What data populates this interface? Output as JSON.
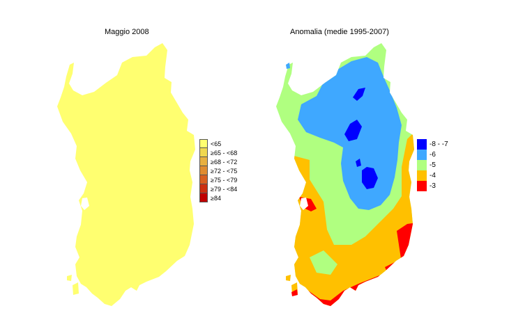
{
  "left_panel": {
    "title": "Maggio 2008",
    "fill_color": "#ffff70",
    "legend": [
      {
        "label": "<65",
        "color": "#ffff70"
      },
      {
        "label": "≥65 -  <68",
        "color": "#f0d850"
      },
      {
        "label": "≥68 -  <72",
        "color": "#e8b040"
      },
      {
        "label": "≥72 -  <75",
        "color": "#e08c30"
      },
      {
        "label": "≥75 -  <79",
        "color": "#d86020"
      },
      {
        "label": "≥79 -  <84",
        "color": "#cc3010"
      },
      {
        "label": "≥84",
        "color": "#c00000"
      }
    ]
  },
  "right_panel": {
    "title": "Anomalia (medie 1995-2007)",
    "legend": [
      {
        "label": "-8 -  -7",
        "color": "#0000ff"
      },
      {
        "label": "-6",
        "color": "#3fa8ff"
      },
      {
        "label": "-5",
        "color": "#b0ff80"
      },
      {
        "label": "-4",
        "color": "#ffc000"
      },
      {
        "label": "-3",
        "color": "#ff0000"
      }
    ]
  }
}
